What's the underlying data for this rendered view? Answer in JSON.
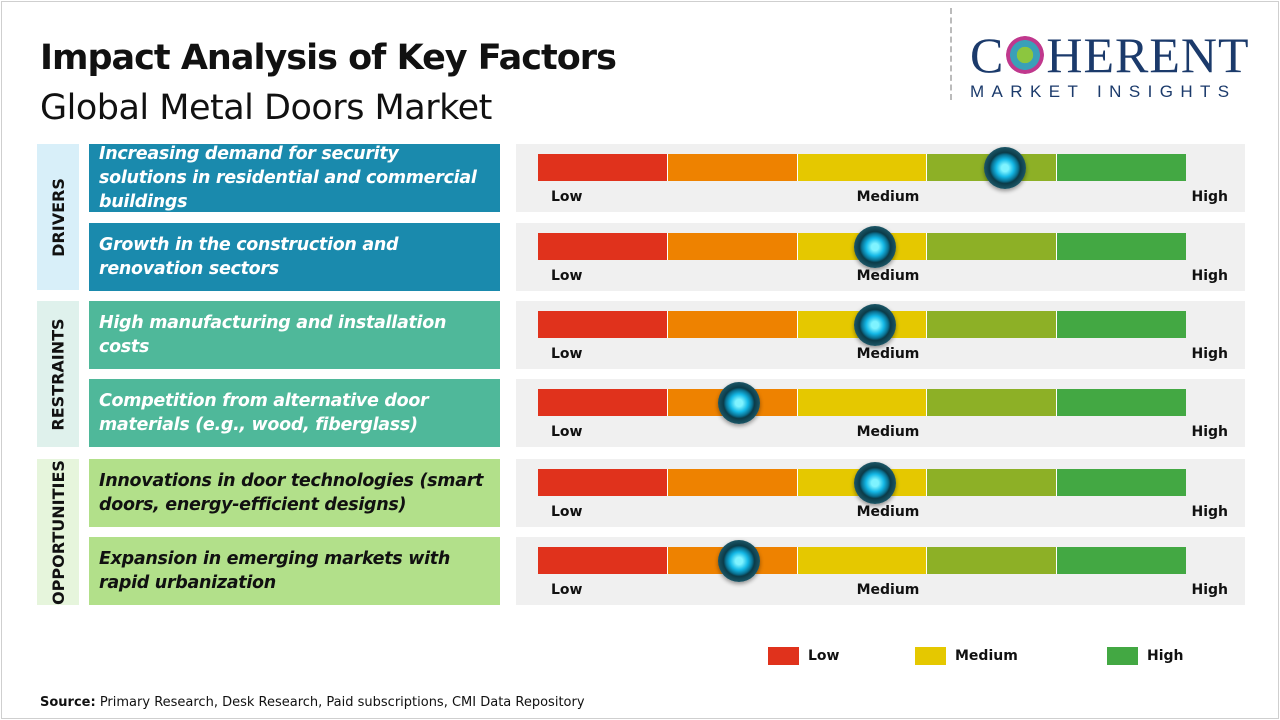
{
  "title": "Impact Analysis of Key Factors",
  "subtitle": "Global Metal Doors Market",
  "logo": {
    "main": "COHERENT",
    "sub": "MARKET INSIGHTS"
  },
  "colors": {
    "segments": [
      "#e0321c",
      "#ee8200",
      "#e5c800",
      "#8db026",
      "#43a843"
    ],
    "drivers": "#1a8aad",
    "restraints": "#4fb89a",
    "opportunities": "#b2e08a"
  },
  "chart_data": {
    "type": "gauge",
    "scale_labels": [
      "Low",
      "Medium",
      "High"
    ],
    "range": [
      0,
      1
    ],
    "categories": [
      {
        "name": "DRIVERS",
        "items": [
          {
            "label": "Increasing demand for security solutions in residential and commercial buildings",
            "value": 0.72
          },
          {
            "label": "Growth in the construction and renovation sectors",
            "value": 0.52
          }
        ]
      },
      {
        "name": "RESTRAINTS",
        "items": [
          {
            "label": "High manufacturing and installation costs",
            "value": 0.52
          },
          {
            "label": "Competition from alternative door materials (e.g., wood, fiberglass)",
            "value": 0.31
          }
        ]
      },
      {
        "name": "OPPORTUNITIES",
        "items": [
          {
            "label": "Innovations in door technologies (smart doors, energy-efficient designs)",
            "value": 0.52
          },
          {
            "label": "Expansion in emerging markets with rapid urbanization",
            "value": 0.31
          }
        ]
      }
    ],
    "legend": [
      {
        "label": "Low",
        "color": "#e0321c"
      },
      {
        "label": "Medium",
        "color": "#e5c800"
      },
      {
        "label": "High",
        "color": "#43a843"
      }
    ]
  },
  "source": {
    "label": "Source:",
    "text": " Primary Research, Desk Research, Paid subscriptions, CMI Data Repository"
  }
}
